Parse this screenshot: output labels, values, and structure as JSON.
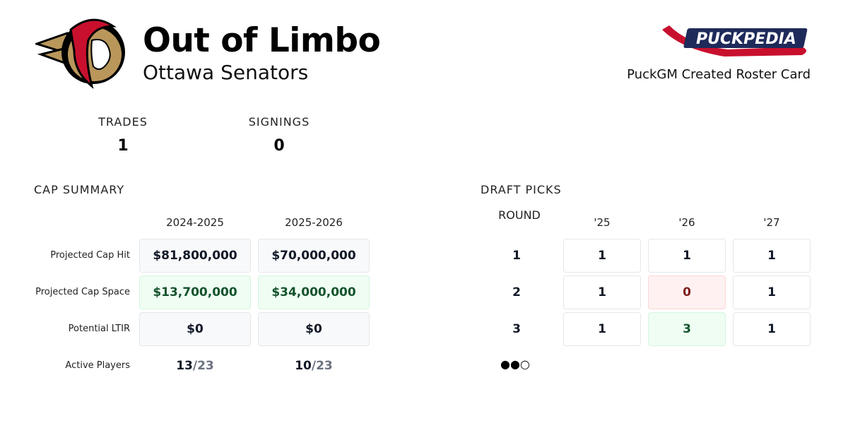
{
  "header": {
    "title": "Out of Limbo",
    "team": "Ottawa Senators",
    "brand_logo_text": "PuckPedia",
    "subtitle": "PuckGM Created Roster Card"
  },
  "stats": {
    "trades_label": "TRADES",
    "trades": "1",
    "signings_label": "SIGNINGS",
    "signings": "0"
  },
  "cap_summary": {
    "title": "CAP SUMMARY",
    "seasons": [
      "2024-2025",
      "2025-2026"
    ],
    "rows": [
      {
        "label": "Projected Cap Hit",
        "values": [
          "$81,800,000",
          "$70,000,000"
        ],
        "style": "neutral"
      },
      {
        "label": "Projected Cap Space",
        "values": [
          "$13,700,000",
          "$34,000,000"
        ],
        "style": "positive"
      },
      {
        "label": "Potential LTIR",
        "values": [
          "$0",
          "$0"
        ],
        "style": "neutral"
      }
    ],
    "active_players": {
      "label": "Active Players",
      "values": [
        {
          "count": "13",
          "max": "/23"
        },
        {
          "count": "10",
          "max": "/23"
        }
      ]
    }
  },
  "draft_picks": {
    "title": "DRAFT PICKS",
    "round_label": "ROUND",
    "years": [
      "'25",
      "'26",
      "'27"
    ],
    "rounds": [
      {
        "round": "1",
        "picks": [
          "1",
          "1",
          "1"
        ]
      },
      {
        "round": "2",
        "picks": [
          "1",
          "0",
          "1"
        ]
      },
      {
        "round": "3",
        "picks": [
          "1",
          "3",
          "1"
        ]
      }
    ],
    "pagination_dots": "●●○"
  },
  "colors": {
    "positive_bg": "#effdf3",
    "positive_text": "#14532d",
    "negative_bg": "#fff1f1",
    "negative_text": "#7f1d1d",
    "senators_red": "#c8102e",
    "senators_gold": "#b9975b"
  }
}
